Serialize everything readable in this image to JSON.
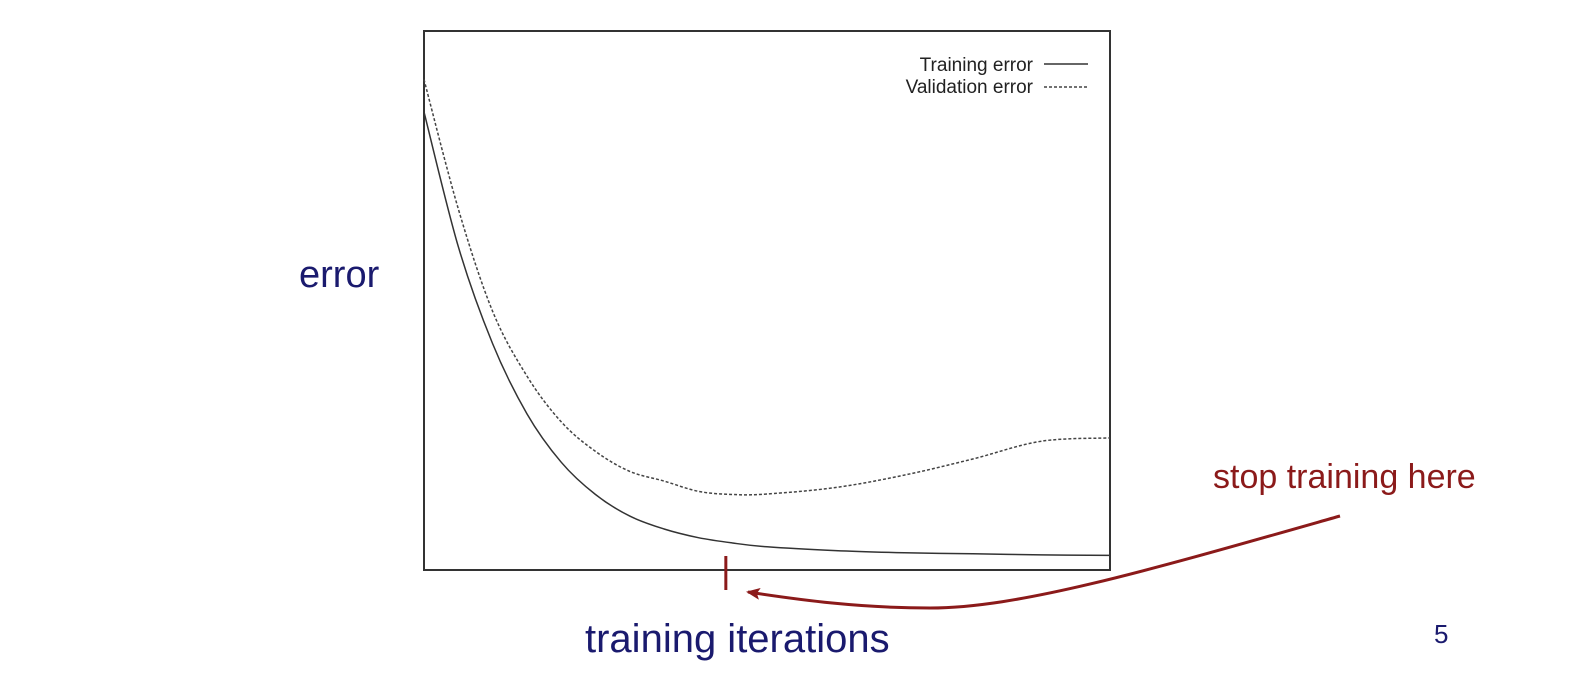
{
  "chart_data": {
    "type": "line",
    "title": "",
    "xlabel": "training iterations",
    "ylabel": "error",
    "grid": false,
    "legend_position": "top-right",
    "xlim": [
      0,
      100
    ],
    "ylim": [
      0,
      100
    ],
    "series": [
      {
        "name": "Training error",
        "style": "solid",
        "color": "#333333",
        "x": [
          0,
          5,
          10,
          15,
          20,
          25,
          30,
          35,
          40,
          45,
          50,
          60,
          70,
          80,
          90,
          100
        ],
        "y": [
          85,
          60,
          42,
          29,
          20,
          14,
          10,
          7.6,
          6,
          5,
          4.3,
          3.6,
          3.2,
          3.0,
          2.8,
          2.7
        ]
      },
      {
        "name": "Validation error",
        "style": "dashed",
        "color": "#444444",
        "x": [
          0,
          5,
          10,
          15,
          20,
          25,
          30,
          35,
          40,
          45,
          50,
          60,
          70,
          80,
          90,
          100
        ],
        "y": [
          91,
          67,
          48,
          36,
          27.5,
          22,
          18.3,
          16.5,
          14.6,
          14,
          14.1,
          15.3,
          17.6,
          20.6,
          23.9,
          24.5
        ]
      }
    ],
    "marker": {
      "x": 44,
      "label": "stop training here",
      "color": "#8b1a1a"
    }
  },
  "page_number": "5"
}
